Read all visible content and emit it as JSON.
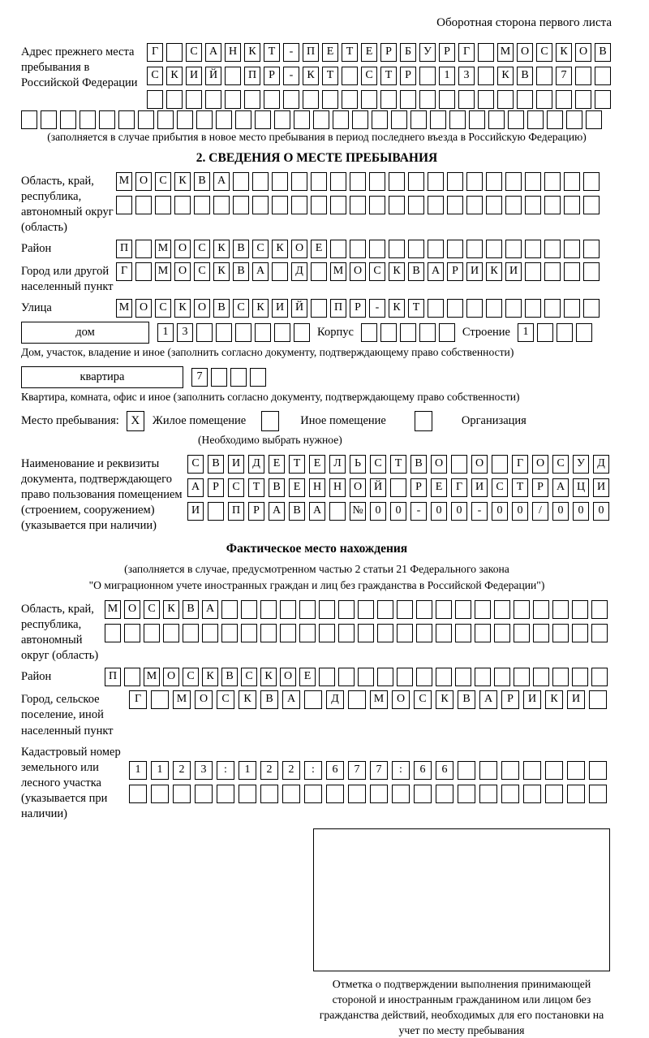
{
  "page": {
    "header_note": "Оборотная сторона первого листа"
  },
  "prev_address": {
    "label": "Адрес прежнего места пребывания в Российской Федерации",
    "row1": "Г САНКТ-ПЕТЕРБУРГ МОСКОВ",
    "row2": "СКИЙ ПР-КТ СТР 13 КВ 7  ",
    "row3": "                        ",
    "row4": "                              ",
    "caption": "(заполняется в случае прибытия в новое место пребывания в период последнего въезда в Российскую Федерацию)"
  },
  "section2": {
    "title": "2. СВЕДЕНИЯ О МЕСТЕ ПРЕБЫВАНИЯ",
    "region": {
      "label": "Область, край, республика, автономный округ (область)",
      "row1": "МОСКВА                   ",
      "row2": "                         "
    },
    "district": {
      "label": "Район",
      "row": "П МОСКВСКОЕ              "
    },
    "city": {
      "label": "Город или другой населенный пункт",
      "row": "Г МОСКВА Д МОСКВАРИКИ    "
    },
    "street": {
      "label": "Улица",
      "row": "МОСКОВСКИЙ ПР-КТ         "
    },
    "house": {
      "box_label": "дом",
      "cells": "13      ",
      "korpus_label": "Корпус",
      "korpus_cells": "     ",
      "stroenie_label": "Строение",
      "stroenie_cells": "1   ",
      "caption": "Дом, участок, владение и иное (заполнить согласно документу, подтверждающему право собственности)"
    },
    "apartment": {
      "box_label": "квартира",
      "cells": "7   ",
      "caption": "Квартира, комната, офис и иное (заполнить согласно документу, подтверждающему право собственности)"
    },
    "premises": {
      "label": "Место пребывания:",
      "opt1_mark": "X",
      "opt1_label": "Жилое помещение",
      "opt2_mark": "",
      "opt2_label": "Иное помещение",
      "opt3_mark": "",
      "opt3_label": "Организация",
      "note": "(Необходимо выбрать нужное)"
    },
    "document": {
      "label": "Наименование и реквизиты документа, подтверждающего право пользования помещением (строением, сооружением) (указывается при наличии)",
      "row1": "СВИДЕТЕЛЬСТВО О ГОСУД",
      "row2": "АРСТВЕННОЙ РЕГИСТРАЦИ",
      "row3": "И ПРАВА №00-00-00/000"
    }
  },
  "actual": {
    "title": "Фактическое место нахождения",
    "caption_line1": "(заполняется в случае, предусмотренном частью 2 статьи 21 Федерального закона",
    "caption_line2": "\"О миграционном учете иностранных граждан и лиц без гражданства в Российской Федерации\")",
    "region": {
      "label": "Область, край, республика, автономный округ (область)",
      "row1": "МОСКВА                    ",
      "row2": "                          "
    },
    "district": {
      "label": "Район",
      "row": "П МОСКВСКОЕ               "
    },
    "city": {
      "label": "Город, сельское поселение, иной населенный пункт",
      "row": "Г МОСКВА Д МОСКВАРИКИ "
    },
    "cadastral": {
      "label": "Кадастровый номер земельного или лесного участка (указывается при наличии)",
      "row1": "1123:122:677:66       ",
      "row2": "                      "
    },
    "stamp_caption": "Отметка о подтверждении выполнения принимающей стороной и иностранным гражданином или лицом без гражданства действий, необходимых для его постановки на учет по месту пребывания"
  }
}
